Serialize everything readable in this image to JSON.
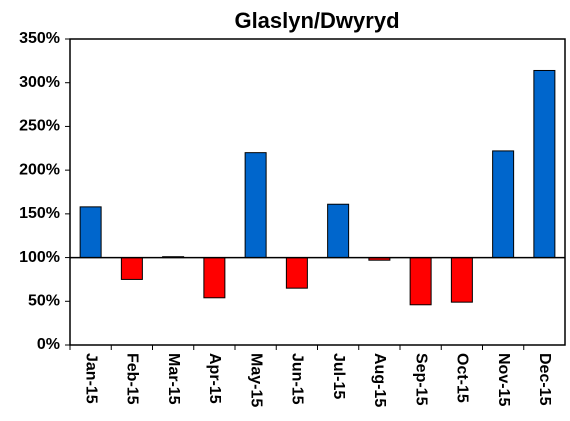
{
  "chart_data": {
    "type": "bar",
    "title": "Glaslyn/Dwyryd",
    "categories": [
      "Jan-15",
      "Feb-15",
      "Mar-15",
      "Apr-15",
      "May-15",
      "Jun-15",
      "Jul-15",
      "Aug-15",
      "Sep-15",
      "Oct-15",
      "Nov-15",
      "Dec-15"
    ],
    "values": [
      158,
      75,
      101,
      54,
      220,
      65,
      161,
      97,
      46,
      49,
      222,
      314
    ],
    "bar_base": 100,
    "color_above": "#0066cc",
    "color_below": "#ff0000",
    "ylim": [
      0,
      350
    ],
    "yticks": [
      {
        "value": 0,
        "label": "0%"
      },
      {
        "value": 50,
        "label": "50%"
      },
      {
        "value": 100,
        "label": "100%"
      },
      {
        "value": 150,
        "label": "150%"
      },
      {
        "value": 200,
        "label": "200%"
      },
      {
        "value": 250,
        "label": "250%"
      },
      {
        "value": 300,
        "label": "300%"
      },
      {
        "value": 350,
        "label": "350%"
      }
    ],
    "grid": false
  }
}
